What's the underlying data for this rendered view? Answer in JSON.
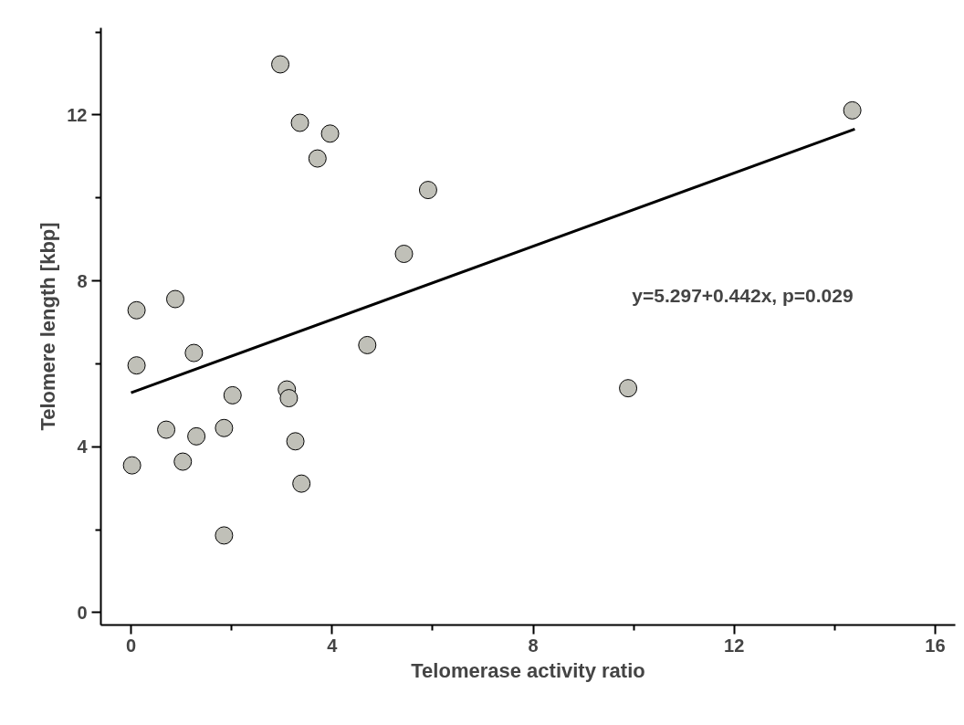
{
  "chart_data": {
    "type": "scatter",
    "xlabel": "Telomerase activity ratio",
    "ylabel": "Telomere length [kbp]",
    "xlim": [
      -0.6,
      16.4
    ],
    "ylim": [
      -0.3,
      14.1
    ],
    "xticks": [
      0,
      4,
      8,
      12,
      16,
      {
        "value": 2,
        "label": null
      },
      {
        "value": 6,
        "label": null
      },
      {
        "value": 10,
        "label": null
      },
      {
        "value": 14,
        "label": null
      }
    ],
    "yticks": [
      0,
      4,
      8,
      12,
      {
        "value": 2,
        "label": null
      },
      {
        "value": 6,
        "label": null
      },
      {
        "value": 10,
        "label": null
      },
      {
        "value": 14,
        "label": null
      }
    ],
    "grid": false,
    "annotations": [
      "y=5.297+0.442x, p=0.029"
    ],
    "series": [
      {
        "marker": "circle",
        "color": "#c0c0b8",
        "x": [
          0.02,
          0.11,
          0.11,
          0.7,
          0.88,
          1.03,
          1.25,
          1.3,
          1.85,
          1.85,
          2.02,
          2.97,
          3.1,
          3.14,
          3.27,
          3.36,
          3.39,
          3.71,
          3.96,
          4.7,
          5.43,
          5.91,
          9.89,
          14.35
        ],
        "values": [
          3.55,
          7.29,
          5.96,
          4.41,
          7.56,
          3.64,
          6.26,
          4.25,
          4.45,
          1.86,
          5.24,
          13.22,
          5.38,
          5.17,
          4.13,
          11.81,
          3.11,
          10.95,
          11.55,
          6.45,
          8.65,
          10.19,
          5.41,
          12.11
        ]
      },
      {
        "type": "line",
        "color": "#000000",
        "line_style": "solid",
        "x": [
          0,
          14.4
        ],
        "values": [
          5.3,
          11.66
        ]
      }
    ]
  }
}
